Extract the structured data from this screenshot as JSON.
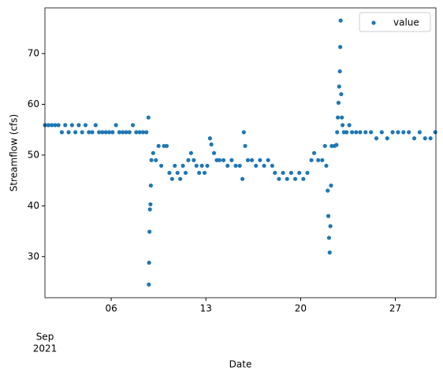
{
  "chart_data": {
    "type": "scatter",
    "xlabel": "Date",
    "ylabel": "Streamflow (cfs)",
    "x_sublabel": [
      "Sep",
      "2021"
    ],
    "x": [
      1.1,
      1.35,
      1.6,
      1.85,
      2.1,
      2.35,
      2.6,
      2.85,
      3.1,
      3.35,
      3.6,
      3.85,
      4.1,
      4.35,
      4.6,
      4.85,
      5.1,
      5.35,
      5.6,
      5.85,
      6.1,
      6.35,
      6.6,
      6.85,
      7.1,
      7.35,
      7.6,
      7.85,
      8.1,
      8.35,
      8.6,
      8.75,
      8.78,
      8.8,
      8.83,
      8.86,
      8.9,
      8.93,
      8.97,
      9.1,
      9.3,
      9.5,
      9.7,
      9.9,
      10.1,
      10.3,
      10.5,
      10.7,
      10.9,
      11.1,
      11.3,
      11.5,
      11.7,
      11.9,
      12.1,
      12.3,
      12.5,
      12.7,
      12.9,
      13.1,
      13.3,
      13.4,
      13.6,
      13.8,
      14.0,
      14.3,
      14.6,
      14.9,
      15.2,
      15.5,
      15.7,
      15.8,
      15.9,
      16.1,
      16.4,
      16.7,
      17.0,
      17.3,
      17.6,
      17.9,
      18.1,
      18.4,
      18.7,
      19.0,
      19.3,
      19.6,
      19.9,
      20.2,
      20.5,
      20.8,
      21.0,
      21.3,
      21.6,
      21.8,
      21.9,
      22.0,
      22.05,
      22.1,
      22.15,
      22.2,
      22.25,
      22.3,
      22.5,
      22.65,
      22.7,
      22.75,
      22.8,
      22.85,
      22.9,
      22.93,
      22.96,
      23.0,
      23.05,
      23.1,
      23.2,
      23.4,
      23.6,
      23.8,
      24.1,
      24.4,
      24.8,
      25.2,
      25.6,
      26.0,
      26.4,
      26.8,
      27.2,
      27.6,
      28.0,
      28.4,
      28.8,
      29.2,
      29.6,
      29.95
    ],
    "series": [
      {
        "name": "value",
        "color": "#1f77b4",
        "values": [
          55.9,
          55.9,
          55.9,
          55.9,
          55.9,
          54.5,
          55.9,
          54.5,
          55.9,
          54.5,
          55.9,
          54.5,
          55.9,
          54.5,
          54.5,
          55.9,
          54.5,
          54.5,
          54.5,
          54.5,
          54.5,
          55.9,
          54.5,
          54.5,
          54.5,
          54.5,
          55.9,
          54.5,
          54.5,
          54.5,
          54.5,
          57.4,
          24.5,
          28.8,
          34.9,
          39.3,
          40.3,
          44,
          49,
          50.4,
          49,
          51.8,
          47.9,
          51.8,
          51.8,
          46.5,
          45.3,
          47.9,
          46.5,
          45.3,
          47.9,
          46.5,
          49,
          50.4,
          49,
          47.9,
          46.5,
          47.9,
          46.5,
          47.9,
          53.3,
          52.1,
          50.4,
          49,
          49,
          49,
          47.9,
          49,
          47.9,
          47.9,
          45.3,
          54.5,
          51.8,
          49,
          49,
          47.9,
          49,
          47.9,
          49,
          47.9,
          46.5,
          45.3,
          46.5,
          45.3,
          46.5,
          45.3,
          46.5,
          45.3,
          46.5,
          49,
          50.4,
          49,
          49,
          51.8,
          47.9,
          43,
          38,
          33.7,
          30.8,
          36,
          44,
          51.8,
          51.8,
          52,
          54.5,
          57.4,
          60.3,
          63.5,
          66.5,
          71.3,
          76.5,
          62,
          57.4,
          55.9,
          54.5,
          54.5,
          55.9,
          54.5,
          54.5,
          54.5,
          54.5,
          54.5,
          53.3,
          54.5,
          53.3,
          54.5,
          54.5,
          54.5,
          54.5,
          53.3,
          54.5,
          53.3,
          53.3,
          54.5
        ]
      }
    ],
    "xlim": [
      1.1,
      30.0
    ],
    "xticks": [
      {
        "value": 6,
        "label": "06"
      },
      {
        "value": 13,
        "label": "13"
      },
      {
        "value": 20,
        "label": "20"
      },
      {
        "value": 27,
        "label": "27"
      }
    ],
    "ylim": [
      21.9,
      79.0
    ],
    "yticks": [
      30,
      40,
      50,
      60,
      70
    ],
    "legend": "upper right"
  }
}
